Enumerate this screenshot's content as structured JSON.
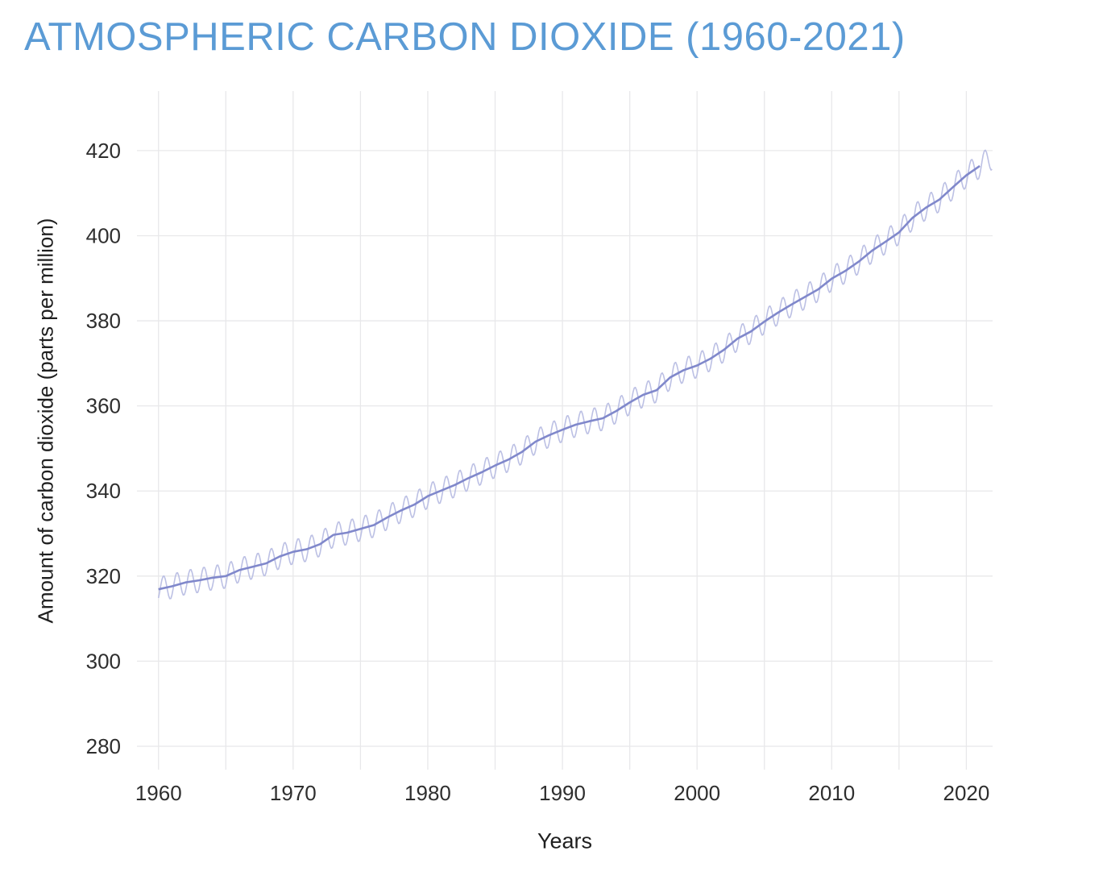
{
  "chart_data": {
    "type": "line",
    "title": "ATMOSPHERIC CARBON DIOXIDE (1960-2021)",
    "xlabel": "Years",
    "ylabel": "Amount of carbon dioxide (parts per million)",
    "xlim": [
      1958.4,
      2021.95
    ],
    "ylim": [
      274.5,
      434
    ],
    "x_ticks": [
      1960,
      1970,
      1980,
      1990,
      2000,
      2010,
      2020
    ],
    "y_ticks": [
      280,
      300,
      320,
      340,
      360,
      380,
      400,
      420
    ],
    "x_grid_interval": 5,
    "grid": true,
    "legend": "none",
    "seasonal_amplitude": 2.9,
    "series": [
      {
        "name": "monthly CO2 with seasonal cycle",
        "color": "#bcc0e4"
      },
      {
        "name": "annual mean trend",
        "color": "#8088cb"
      }
    ],
    "x": [
      1960,
      1961,
      1962,
      1963,
      1964,
      1965,
      1966,
      1967,
      1968,
      1969,
      1970,
      1971,
      1972,
      1973,
      1974,
      1975,
      1976,
      1977,
      1978,
      1979,
      1980,
      1981,
      1982,
      1983,
      1984,
      1985,
      1986,
      1987,
      1988,
      1989,
      1990,
      1991,
      1992,
      1993,
      1994,
      1995,
      1996,
      1997,
      1998,
      1999,
      2000,
      2001,
      2002,
      2003,
      2004,
      2005,
      2006,
      2007,
      2008,
      2009,
      2010,
      2011,
      2012,
      2013,
      2014,
      2015,
      2016,
      2017,
      2018,
      2019,
      2020,
      2021
    ],
    "trend": [
      316.9,
      317.6,
      318.5,
      319.0,
      319.6,
      320.0,
      321.4,
      322.2,
      323.0,
      324.6,
      325.7,
      326.3,
      327.5,
      329.7,
      330.2,
      331.1,
      332.0,
      333.8,
      335.4,
      336.8,
      338.8,
      340.1,
      341.4,
      343.0,
      344.4,
      346.0,
      347.4,
      349.2,
      351.6,
      353.1,
      354.4,
      355.6,
      356.4,
      357.1,
      358.8,
      360.8,
      362.6,
      363.7,
      366.7,
      368.4,
      369.5,
      371.1,
      373.2,
      375.8,
      377.5,
      379.8,
      381.9,
      383.8,
      385.6,
      387.4,
      389.9,
      391.7,
      393.9,
      396.5,
      398.6,
      400.8,
      404.2,
      406.6,
      408.5,
      411.4,
      414.2,
      416.4
    ],
    "colors": {
      "title": "#5b9bd5",
      "trend": "#8088cb",
      "seasonal": "#bcc0e4",
      "grid": "#e8e8ea",
      "text": "#2e2e2e"
    }
  }
}
